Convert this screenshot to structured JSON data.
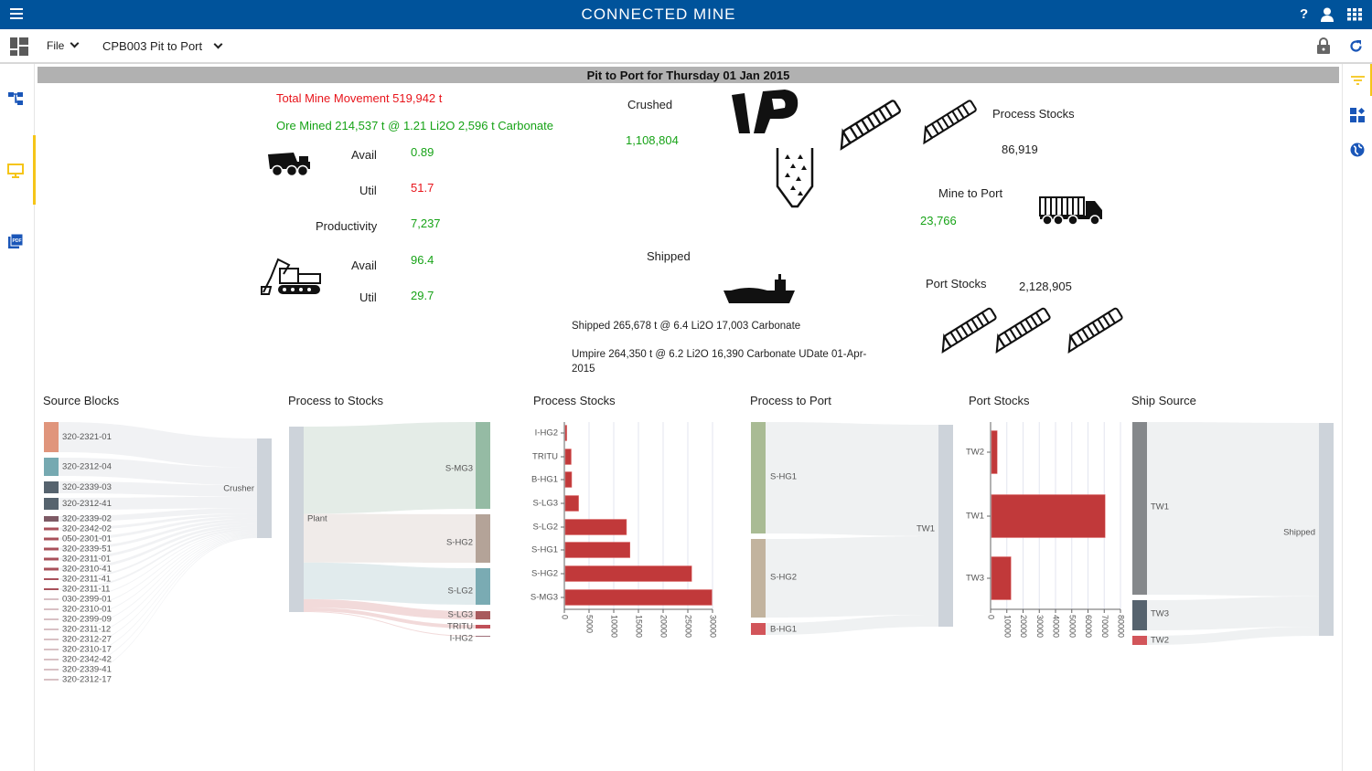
{
  "app": {
    "title": "CONNECTED MINE",
    "icons": [
      "menu-icon",
      "help-icon",
      "user-icon",
      "apps-grid-icon"
    ]
  },
  "toolbar": {
    "file_label": "File",
    "report_label": "CPB003 Pit to Port",
    "icons": [
      "dashboard-icon",
      "lock-icon",
      "refresh-icon"
    ]
  },
  "left_rail": {
    "icons": [
      "hierarchy-icon",
      "monitor-icon",
      "pdf-icon"
    ],
    "active": "monitor-icon"
  },
  "right_rail": {
    "icons": [
      "filter-icon",
      "widgets-icon",
      "globe-icon"
    ],
    "active": "filter-icon"
  },
  "report": {
    "title": "Pit to Port for Thursday 01 Jan 2015",
    "total_movement": "Total Mine Movement 519,942 t",
    "ore_mined": "Ore Mined 214,537 t @ 1.21 Li2O 2,596 t Carbonate",
    "truck": {
      "avail_label": "Avail",
      "avail": "0.89",
      "util_label": "Util",
      "util": "51.7",
      "prod_label": "Productivity",
      "prod": "7,237"
    },
    "excavator": {
      "avail_label": "Avail",
      "avail": "96.4",
      "util_label": "Util",
      "util": "29.7"
    },
    "crushed_label": "Crushed",
    "crushed": "1,108,804",
    "process_stocks_label": "Process Stocks",
    "process_stocks": "86,919",
    "mine_to_port_label": "Mine to Port",
    "mine_to_port": "23,766",
    "shipped_label": "Shipped",
    "port_stocks_label": "Port Stocks",
    "port_stocks": "2,128,905",
    "shipped_line": "Shipped 265,678 t @ 6.4 Li2O 17,003 Carbonate",
    "umpire_line1": "Umpire 264,350 t @ 6.2 Li2O 16,390 Carbonate UDate 01-Apr-",
    "umpire_line2": "2015"
  },
  "sections": {
    "source_blocks": "Source Blocks",
    "process_to_stocks": "Process to Stocks",
    "process_stocks": "Process Stocks",
    "process_to_port": "Process to Port",
    "port_stocks": "Port Stocks",
    "ship_source": "Ship Source"
  },
  "source_blocks": {
    "sources": [
      "320-2321-01",
      "320-2312-04",
      "320-2339-03",
      "320-2312-41",
      "320-2339-02",
      "320-2342-02",
      "050-2301-01",
      "320-2339-51",
      "320-2311-01",
      "320-2310-41",
      "320-2311-41",
      "320-2311-11",
      "030-2399-01",
      "320-2310-01",
      "320-2399-09",
      "320-2311-12",
      "320-2312-27",
      "320-2310-17",
      "320-2342-42",
      "320-2339-41",
      "320-2312-17"
    ],
    "target": "Crusher"
  },
  "process_to_stocks": {
    "source": "Plant",
    "targets": [
      "S-MG3",
      "S-HG2",
      "S-LG2",
      "S-LG3",
      "TRITU",
      "I-HG2"
    ]
  },
  "process_to_port": {
    "sources": [
      "S-HG1",
      "S-HG2",
      "B-HG1"
    ],
    "target": "TW1"
  },
  "ship_source": {
    "sources": [
      "TW1",
      "TW3",
      "TW2"
    ],
    "target": "Shipped"
  },
  "chart_data": [
    {
      "type": "bar",
      "orientation": "horizontal",
      "title": "Process Stocks",
      "categories": [
        "I-HG2",
        "TRITU",
        "B-HG1",
        "S-LG3",
        "S-LG2",
        "S-HG1",
        "S-HG2",
        "S-MG3"
      ],
      "values": [
        300,
        1200,
        1300,
        2700,
        12400,
        13100,
        25600,
        29700
      ],
      "xlim": [
        0,
        30000
      ],
      "ticks": [
        "0",
        "5000",
        "10000",
        "15000",
        "20000",
        "25000",
        "30000"
      ],
      "grid": true,
      "color": "#c1393a"
    },
    {
      "type": "bar",
      "orientation": "horizontal",
      "title": "Port Stocks",
      "categories": [
        "TW2",
        "TW1",
        "TW3"
      ],
      "values": [
        3500,
        70000,
        12000
      ],
      "xlim": [
        0,
        80000
      ],
      "ticks": [
        "0",
        "10000",
        "20000",
        "30000",
        "40000",
        "50000",
        "60000",
        "70000",
        "80000"
      ],
      "grid": true,
      "color": "#c1393a"
    }
  ],
  "colors": {
    "header": "#00539b",
    "good": "#17a317",
    "bad": "#e8141b",
    "accent": "#f5c518"
  }
}
